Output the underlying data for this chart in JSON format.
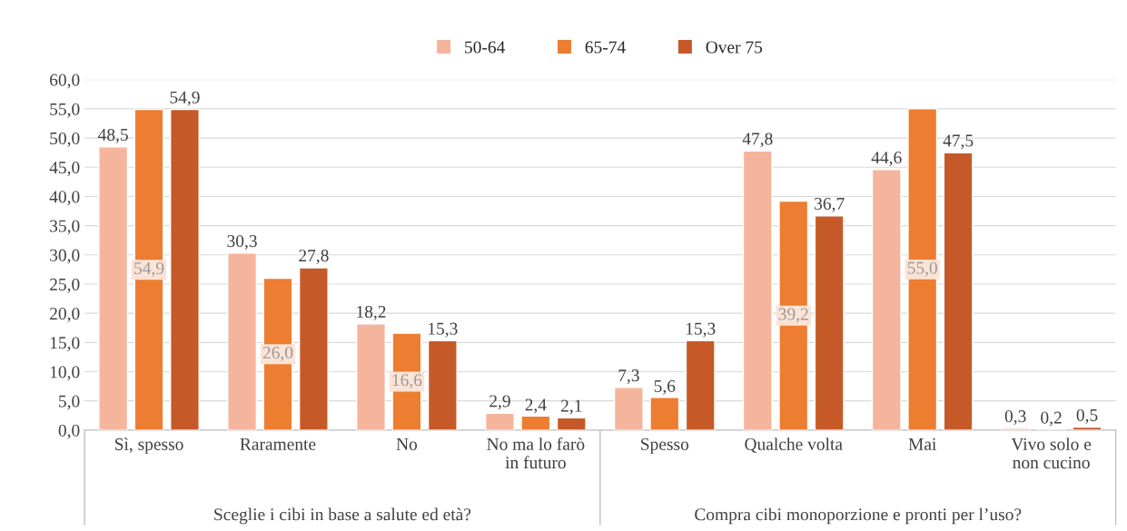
{
  "chart_data": {
    "type": "bar",
    "categories": [
      "Sì, spesso",
      "Raramente",
      "No",
      "No ma lo farò\nin futuro",
      "Spesso",
      "Qualche volta",
      "Mai",
      "Vivo solo e\nnon cucino"
    ],
    "series": [
      {
        "name": "50-64",
        "color": "#f4b59c",
        "values": [
          48.5,
          30.3,
          18.2,
          2.9,
          7.3,
          47.8,
          44.6,
          0.3
        ],
        "value_labels": [
          "48,5",
          "30,3",
          "18,2",
          "2,9",
          "7,3",
          "47,8",
          "44,6",
          "0,3"
        ]
      },
      {
        "name": "65-74",
        "color": "#ed7d31",
        "values": [
          54.9,
          26.0,
          16.6,
          2.4,
          5.6,
          39.2,
          55.0,
          0.2
        ],
        "value_labels": [
          "54,9",
          "26,0",
          "16,6",
          "2,4",
          "5,6",
          "39,2",
          "55,0",
          "0,2"
        ]
      },
      {
        "name": "Over 75",
        "color": "#c55a28",
        "values": [
          54.9,
          27.8,
          15.3,
          2.1,
          15.3,
          36.7,
          47.5,
          0.5
        ],
        "value_labels": [
          "54,9",
          "27,8",
          "15,3",
          "2,1",
          "15,3",
          "36,7",
          "47,5",
          "0,5"
        ]
      }
    ],
    "ylim": [
      0,
      60
    ],
    "yticks": [
      {
        "value": 0,
        "label": "0,0"
      },
      {
        "value": 5,
        "label": "5,0"
      },
      {
        "value": 10,
        "label": "10,0"
      },
      {
        "value": 15,
        "label": "15,0"
      },
      {
        "value": 20,
        "label": "20,0"
      },
      {
        "value": 25,
        "label": "25,0"
      },
      {
        "value": 30,
        "label": "30,0"
      },
      {
        "value": 35,
        "label": "35,0"
      },
      {
        "value": 40,
        "label": "40,0"
      },
      {
        "value": 45,
        "label": "45,0"
      },
      {
        "value": 50,
        "label": "50,0"
      },
      {
        "value": 55,
        "label": "55,0"
      },
      {
        "value": 60,
        "label": "60,0"
      }
    ],
    "grid": "y",
    "legend": "top",
    "annotations": [
      "Sceglie i cibi in base a salute ed età?",
      "Compra cibi monoporzione e pronti per l’uso?"
    ]
  }
}
